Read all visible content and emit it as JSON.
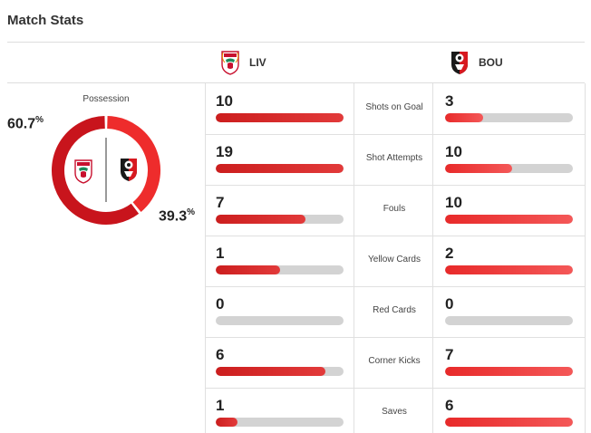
{
  "title": "Match Stats",
  "teams": {
    "home": {
      "abbr": "LIV",
      "logo": "liverpool-crest-icon",
      "color": "#d41f26"
    },
    "away": {
      "abbr": "BOU",
      "logo": "bournemouth-crest-icon",
      "color": "#e62333"
    }
  },
  "possession": {
    "label": "Possession",
    "home_text": "60.7%",
    "away_text": "39.3%",
    "home_value": 60.7,
    "away_value": 39.3
  },
  "stats": [
    {
      "label": "Shots on Goal",
      "home": "10",
      "away": "3",
      "home_max": 10,
      "away_max": 10
    },
    {
      "label": "Shot Attempts",
      "home": "19",
      "away": "10",
      "home_max": 19,
      "away_max": 19
    },
    {
      "label": "Fouls",
      "home": "7",
      "away": "10",
      "home_max": 10,
      "away_max": 10
    },
    {
      "label": "Yellow Cards",
      "home": "1",
      "away": "2",
      "home_max": 2,
      "away_max": 2
    },
    {
      "label": "Red Cards",
      "home": "0",
      "away": "0",
      "home_max": 0,
      "away_max": 0
    },
    {
      "label": "Corner Kicks",
      "home": "6",
      "away": "7",
      "home_max": 7,
      "away_max": 7
    },
    {
      "label": "Saves",
      "home": "1",
      "away": "6",
      "home_max": 6,
      "away_max": 6
    }
  ]
}
